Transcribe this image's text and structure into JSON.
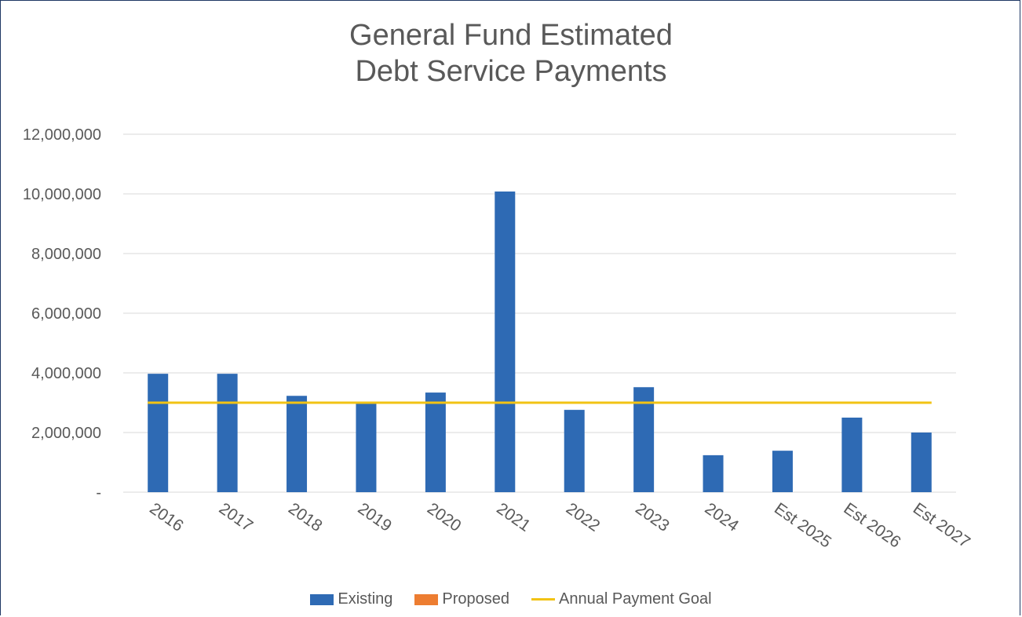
{
  "chart_data": {
    "type": "bar",
    "title_lines": [
      "General Fund Estimated",
      "Debt Service Payments"
    ],
    "categories": [
      "2016",
      "2017",
      "2018",
      "2019",
      "2020",
      "2021",
      "2022",
      "2023",
      "2024",
      "Est 2025",
      "Est 2026",
      "Est 2027"
    ],
    "series": [
      {
        "name": "Existing",
        "kind": "bar",
        "color": "#2e6ab4",
        "values": [
          3970000,
          3970000,
          3230000,
          3030000,
          3340000,
          10080000,
          2760000,
          3520000,
          1240000,
          1390000,
          2500000,
          2000000
        ]
      },
      {
        "name": "Proposed",
        "kind": "bar",
        "color": "#ed7d31",
        "values": [
          0,
          0,
          0,
          0,
          0,
          0,
          0,
          0,
          0,
          0,
          0,
          0
        ]
      },
      {
        "name": "Annual Payment Goal",
        "kind": "line",
        "color": "#f2c314",
        "values": [
          3000000,
          3000000,
          3000000,
          3000000,
          3000000,
          3000000,
          3000000,
          3000000,
          3000000,
          3000000,
          3000000,
          3000000
        ]
      }
    ],
    "ylim": [
      0,
      12000000
    ],
    "yticks": [
      0,
      2000000,
      4000000,
      6000000,
      8000000,
      10000000,
      12000000
    ],
    "ytick_labels": [
      "-",
      "2,000,000",
      "4,000,000",
      "6,000,000",
      "8,000,000",
      "10,000,000",
      "12,000,000"
    ],
    "grid": true,
    "legend_position": "bottom"
  }
}
